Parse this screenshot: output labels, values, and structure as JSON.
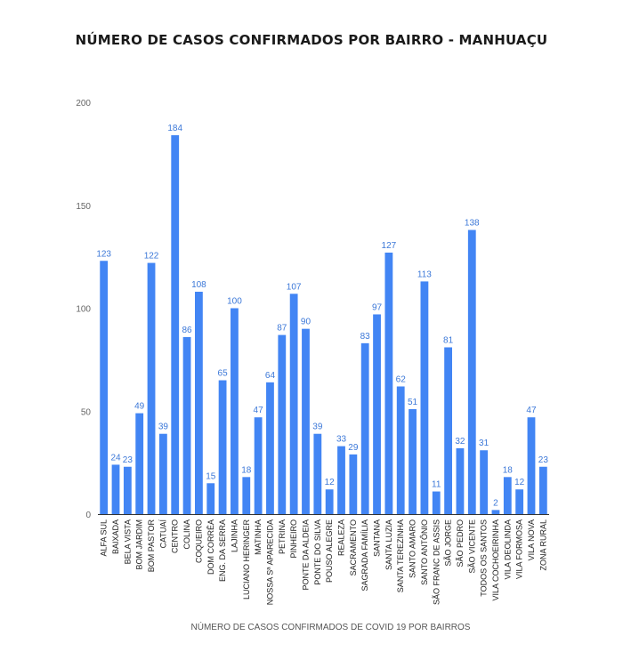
{
  "chart_data": {
    "type": "bar",
    "title": "NÚMERO DE  CASOS CONFIRMADOS POR BAIRRO - MANHUAÇU",
    "xlabel": "NÚMERO DE CASOS CONFIRMADOS DE COVID 19 POR BAIRROS",
    "ylabel": "",
    "ylim": [
      0,
      200
    ],
    "yticks": [
      "0",
      "50",
      "100",
      "150",
      "200"
    ],
    "grid": false,
    "legend": "none",
    "bar_color": "#4285f4",
    "label_color": "#3c78d8",
    "categories": [
      "ALFA SUL",
      "BAIXADA",
      "BELA VISTA",
      "BOM JARDIM",
      "BOM PASTOR",
      "CATUAÍ",
      "CENTRO",
      "COLINA",
      "COQUEIRO",
      "DOM CORRÊA",
      "ENG. DA SERRA",
      "LAJINHA",
      "LUCIANO HERINGER",
      "MATINHA",
      "NOSSA Sª APARECIDA",
      "PETRINA",
      "PINHEIRO",
      "PONTE DA ALDEIA",
      "PONTE DO SILVA",
      "POUSO ALEGRE",
      "REALEZA",
      "SACRAMENTO",
      "SAGRADA FAMÍLIA",
      "SANTANA",
      "SANTA LUZIA",
      "SANTA TEREZINHA",
      "SANTO AMARO",
      "SANTO ANTÔNIO",
      "SÃO FRANC DE ASSIS",
      "SÃO JORGE",
      "SÃO PEDRO",
      "SÃO VICENTE",
      "TODOS OS SANTOS",
      "VILA COCHOEIRINHA",
      "VILA DEOLINDA",
      "VILA FORMOSA",
      "VILA NOVA",
      "ZONA RURAL"
    ],
    "values": [
      123,
      24,
      23,
      49,
      122,
      39,
      184,
      86,
      108,
      15,
      65,
      100,
      18,
      47,
      64,
      87,
      107,
      90,
      39,
      12,
      33,
      29,
      83,
      97,
      127,
      62,
      51,
      113,
      11,
      81,
      32,
      138,
      31,
      2,
      18,
      12,
      47,
      23
    ]
  }
}
